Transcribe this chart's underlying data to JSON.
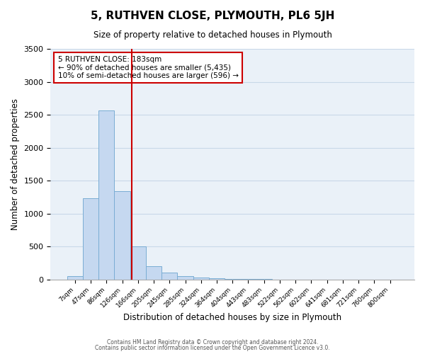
{
  "title": "5, RUTHVEN CLOSE, PLYMOUTH, PL6 5JH",
  "subtitle": "Size of property relative to detached houses in Plymouth",
  "xlabel": "Distribution of detached houses by size in Plymouth",
  "ylabel": "Number of detached properties",
  "bar_values": [
    50,
    1230,
    2570,
    1340,
    500,
    200,
    105,
    50,
    30,
    20,
    10,
    5,
    5,
    0,
    0,
    0,
    0,
    0,
    0,
    0,
    0
  ],
  "bar_labels": [
    "7sqm",
    "47sqm",
    "86sqm",
    "126sqm",
    "166sqm",
    "205sqm",
    "245sqm",
    "285sqm",
    "324sqm",
    "364sqm",
    "404sqm",
    "443sqm",
    "483sqm",
    "522sqm",
    "562sqm",
    "602sqm",
    "641sqm",
    "681sqm",
    "721sqm",
    "760sqm",
    "800sqm"
  ],
  "bar_color": "#c5d8f0",
  "bar_edge_color": "#7aadd4",
  "grid_color": "#c8d8e8",
  "background_color": "#eaf1f8",
  "vline_x": 3.62,
  "vline_color": "#cc0000",
  "annotation_text": "5 RUTHVEN CLOSE: 183sqm\n← 90% of detached houses are smaller (5,435)\n10% of semi-detached houses are larger (596) →",
  "annotation_box_color": "#cc0000",
  "ylim": [
    0,
    3500
  ],
  "yticks": [
    0,
    500,
    1000,
    1500,
    2000,
    2500,
    3000,
    3500
  ],
  "footer_line1": "Contains HM Land Registry data © Crown copyright and database right 2024.",
  "footer_line2": "Contains public sector information licensed under the Open Government Licence v3.0."
}
